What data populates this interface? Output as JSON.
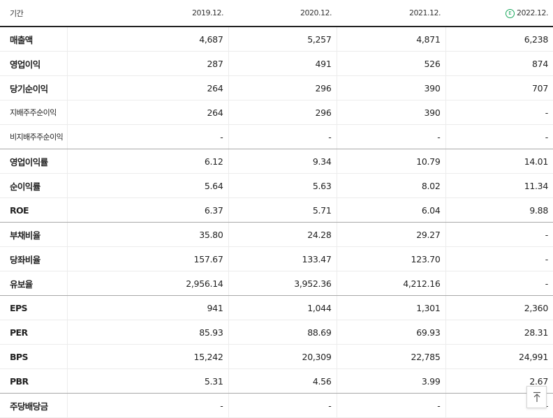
{
  "header": {
    "label": "기간",
    "periods": [
      "2019.12.",
      "2020.12.",
      "2021.12.",
      "2022.12."
    ],
    "estimate_icon": "E"
  },
  "rows": [
    {
      "label": "매출액",
      "values": [
        "4,687",
        "5,257",
        "4,871",
        "6,238"
      ]
    },
    {
      "label": "영업이익",
      "values": [
        "287",
        "491",
        "526",
        "874"
      ]
    },
    {
      "label": "당기순이익",
      "values": [
        "264",
        "296",
        "390",
        "707"
      ]
    },
    {
      "label": "지배주주순이익",
      "values": [
        "264",
        "296",
        "390",
        "-"
      ]
    },
    {
      "label": "비지배주주순이익",
      "values": [
        "-",
        "-",
        "-",
        "-"
      ]
    },
    {
      "label": "영업이익률",
      "values": [
        "6.12",
        "9.34",
        "10.79",
        "14.01"
      ]
    },
    {
      "label": "순이익률",
      "values": [
        "5.64",
        "5.63",
        "8.02",
        "11.34"
      ]
    },
    {
      "label": "ROE",
      "values": [
        "6.37",
        "5.71",
        "6.04",
        "9.88"
      ]
    },
    {
      "label": "부채비율",
      "values": [
        "35.80",
        "24.28",
        "29.27",
        "-"
      ]
    },
    {
      "label": "당좌비율",
      "values": [
        "157.67",
        "133.47",
        "123.70",
        "-"
      ]
    },
    {
      "label": "유보율",
      "values": [
        "2,956.14",
        "3,952.36",
        "4,212.16",
        "-"
      ]
    },
    {
      "label": "EPS",
      "values": [
        "941",
        "1,044",
        "1,301",
        "2,360"
      ]
    },
    {
      "label": "PER",
      "values": [
        "85.93",
        "88.69",
        "69.93",
        "28.31"
      ]
    },
    {
      "label": "BPS",
      "values": [
        "15,242",
        "20,309",
        "22,785",
        "24,991"
      ]
    },
    {
      "label": "PBR",
      "values": [
        "5.31",
        "4.56",
        "3.99",
        "2.67"
      ]
    },
    {
      "label": "주당배당금",
      "values": [
        "-",
        "-",
        "-",
        "-"
      ]
    }
  ],
  "colors": {
    "estimate": "#1aa85c",
    "header_rule": "#222222",
    "group_rule": "#a8a8a8"
  },
  "icons": {
    "estimate": "estimate-badge-icon",
    "scroll_top": "arrow-up-icon"
  }
}
